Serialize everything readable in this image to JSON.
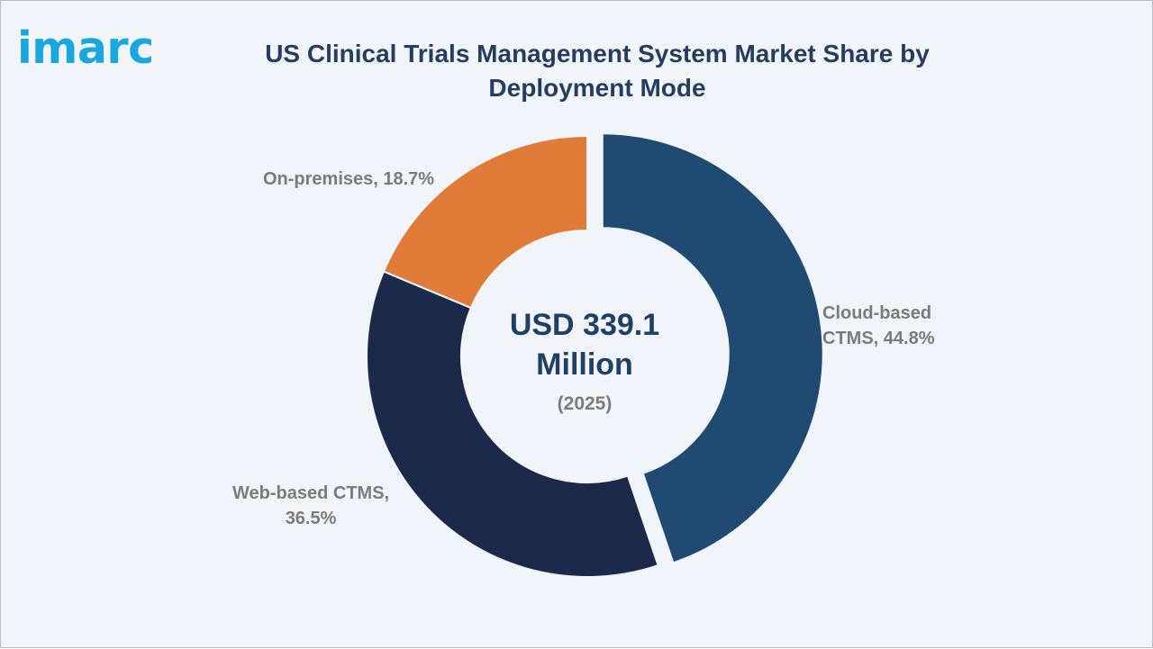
{
  "logo": {
    "text": "imarc"
  },
  "chart_data": {
    "type": "pie",
    "title": "US Clinical Trials Management System Market Share by Deployment Mode",
    "center_value": "USD 339.1 Million",
    "center_subtitle": "(2025)",
    "slices": [
      {
        "name": "Cloud-based CTMS",
        "value": 44.8,
        "unit": "%",
        "label": "Cloud-based CTMS, 44.8%",
        "color": "#1f4a72",
        "exploded": true
      },
      {
        "name": "Web-based CTMS",
        "value": 36.5,
        "unit": "%",
        "label": "Web-based CTMS, 36.5%",
        "color": "#1b2a4b",
        "exploded": false
      },
      {
        "name": "On-premises",
        "value": 18.7,
        "unit": "%",
        "label": "On-premises, 18.7%",
        "color": "#e07b39",
        "exploded": false
      }
    ]
  },
  "labels": {
    "cloud_line1": "Cloud-based",
    "cloud_line2": "CTMS, 44.8%",
    "web_line1": "Web-based CTMS,",
    "web_line2": "36.5%",
    "onprem": "On-premises, 18.7%"
  }
}
